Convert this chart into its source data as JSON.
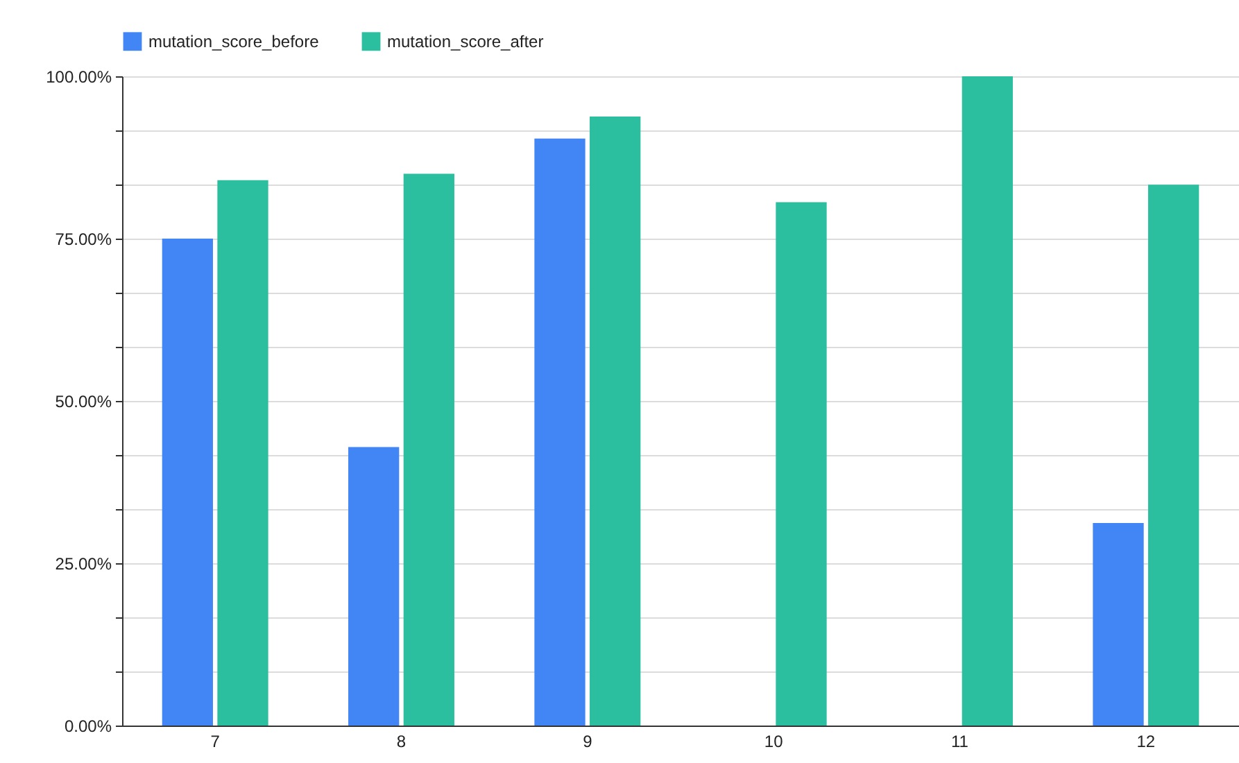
{
  "chart_data": {
    "type": "bar",
    "categories": [
      "7",
      "8",
      "9",
      "10",
      "11",
      "12"
    ],
    "series": [
      {
        "name": "mutation_score_before",
        "color": "#4285f4",
        "values": [
          75.0,
          42.9,
          90.4,
          0,
          0,
          31.2
        ]
      },
      {
        "name": "mutation_score_after",
        "color": "#2bbfa0",
        "values": [
          84.0,
          85.0,
          93.8,
          80.6,
          100.0,
          83.3
        ]
      }
    ],
    "ylim": [
      0,
      100
    ],
    "yticks": [
      {
        "value": 0,
        "label": "0.00%"
      },
      {
        "value": 8.333,
        "label": null
      },
      {
        "value": 16.667,
        "label": null
      },
      {
        "value": 25,
        "label": "25.00%"
      },
      {
        "value": 33.333,
        "label": null
      },
      {
        "value": 41.667,
        "label": null
      },
      {
        "value": 50,
        "label": "50.00%"
      },
      {
        "value": 58.333,
        "label": null
      },
      {
        "value": 66.667,
        "label": null
      },
      {
        "value": 75,
        "label": "75.00%"
      },
      {
        "value": 83.333,
        "label": null
      },
      {
        "value": 91.667,
        "label": null
      },
      {
        "value": 100,
        "label": "100.00%"
      }
    ],
    "grid": "y",
    "legend": "top"
  }
}
